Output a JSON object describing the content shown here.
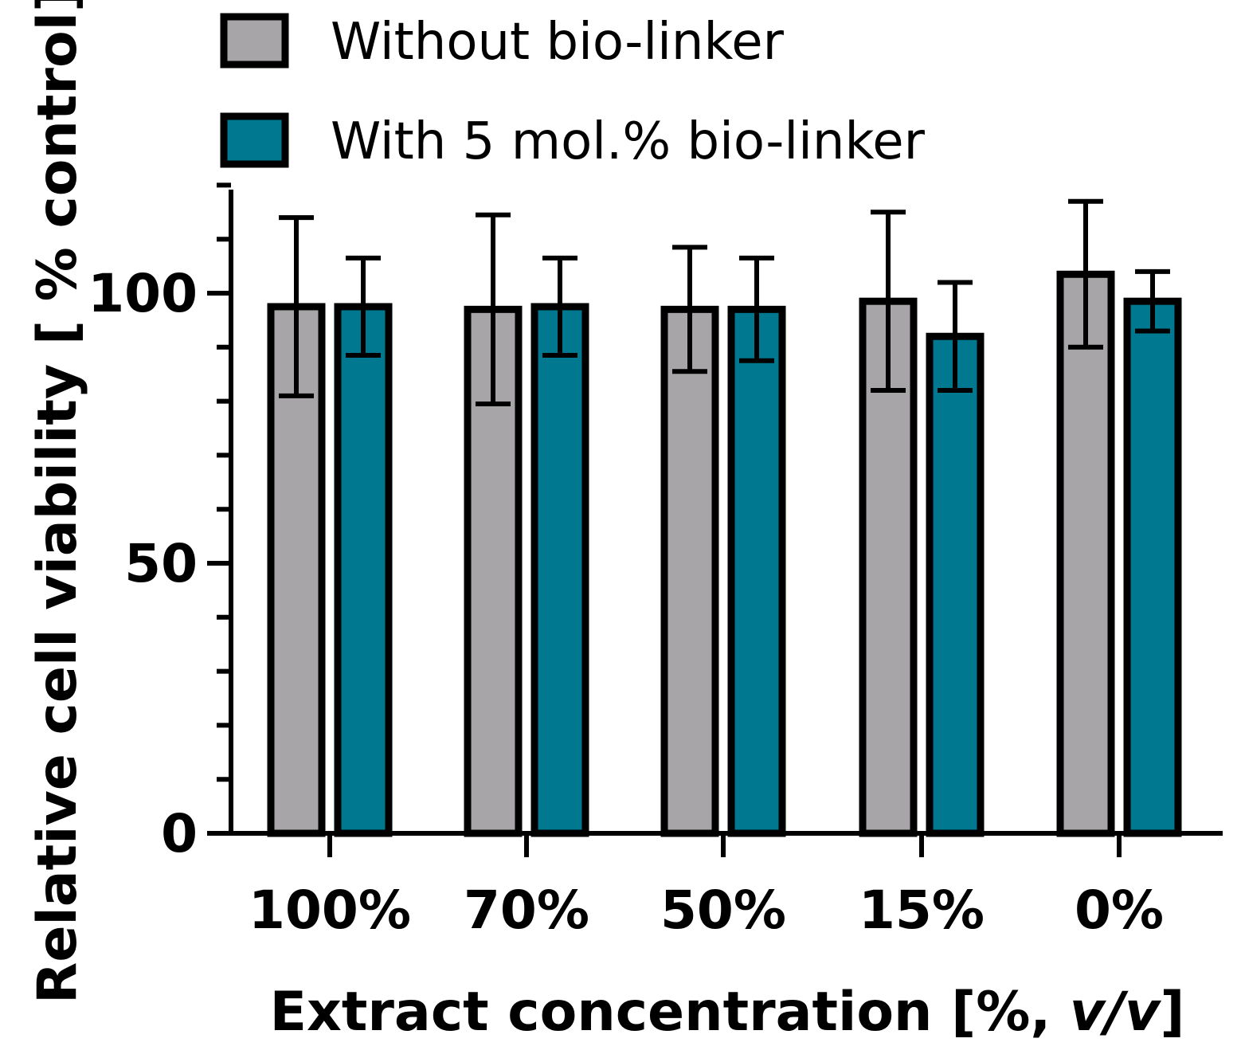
{
  "chart_data": {
    "type": "bar",
    "categories": [
      "100%",
      "70%",
      "50%",
      "15%",
      "0%"
    ],
    "series": [
      {
        "name": "Without bio-linker",
        "color": "#a7a5a8",
        "values": [
          97.5,
          97.0,
          97.0,
          98.5,
          103.5
        ],
        "errors": [
          16.5,
          17.5,
          11.5,
          16.5,
          13.5
        ]
      },
      {
        "name": "With 5 mol.% bio-linker",
        "color": "#00788f",
        "values": [
          97.5,
          97.5,
          97.0,
          92.0,
          98.5
        ],
        "errors": [
          9.0,
          9.0,
          9.5,
          10.0,
          5.5
        ]
      }
    ],
    "xlabel": {
      "main": "Extract concentration [%, ",
      "italic": "v/v",
      "end": "]"
    },
    "ylabel": "Relative cell viability [ % control]",
    "ylim": [
      0,
      120
    ],
    "yticks": [
      0,
      50,
      100
    ],
    "yminor_step": 10,
    "legend_position": "top-left",
    "grid": false
  }
}
